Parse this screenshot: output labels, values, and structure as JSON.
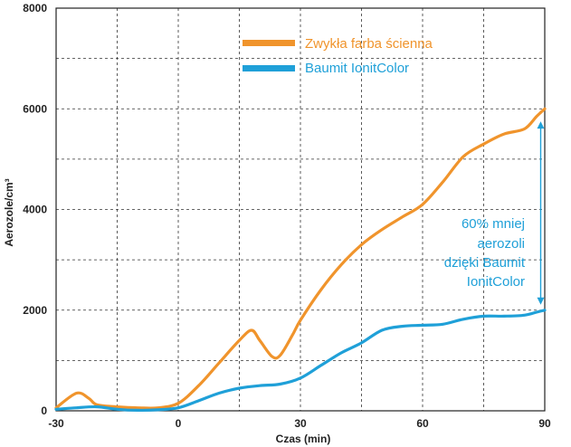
{
  "chart_data": {
    "type": "line",
    "xlabel": "Czas (min)",
    "ylabel": "Aerozole/cm³",
    "xlim": [
      -30,
      90
    ],
    "ylim": [
      0,
      8000
    ],
    "xticks": [
      -30,
      0,
      30,
      60,
      90
    ],
    "xtick_labels": [
      "-30",
      "0",
      "30",
      "60",
      "90"
    ],
    "yticks": [
      0,
      2000,
      4000,
      6000,
      8000
    ],
    "ytick_labels": [
      "0",
      "2000",
      "4000",
      "6000",
      "8000"
    ],
    "grid": true,
    "legend_position": "top-center",
    "series": [
      {
        "name": "Zwykła farba ścienna",
        "color": "#F0942C",
        "x": [
          -30,
          -25,
          -22,
          -20,
          -15,
          -10,
          -5,
          0,
          5,
          10,
          15,
          18,
          20,
          23,
          25,
          28,
          30,
          35,
          40,
          45,
          50,
          55,
          60,
          65,
          70,
          75,
          80,
          85,
          88,
          90
        ],
        "y": [
          60,
          350,
          250,
          120,
          80,
          60,
          60,
          150,
          500,
          950,
          1400,
          1600,
          1400,
          1080,
          1100,
          1500,
          1800,
          2400,
          2900,
          3300,
          3600,
          3850,
          4100,
          4550,
          5050,
          5300,
          5500,
          5600,
          5850,
          6000
        ]
      },
      {
        "name": "Baumit IonitColor",
        "color": "#1FA0D8",
        "x": [
          -30,
          -25,
          -20,
          -15,
          -10,
          -5,
          0,
          5,
          10,
          15,
          20,
          25,
          30,
          35,
          40,
          45,
          50,
          55,
          60,
          65,
          70,
          75,
          80,
          85,
          88,
          90
        ],
        "y": [
          30,
          60,
          80,
          30,
          10,
          20,
          60,
          200,
          350,
          450,
          500,
          530,
          650,
          900,
          1150,
          1350,
          1600,
          1680,
          1700,
          1720,
          1820,
          1880,
          1880,
          1900,
          1960,
          2000
        ]
      }
    ],
    "annotation": {
      "lines": [
        "60% mniej",
        "aerozoli",
        "dzięki Baumit",
        "IonitColor"
      ],
      "color": "#1FA0D8",
      "arrow_x": 89,
      "arrow_from_y": 2000,
      "arrow_to_y": 5750
    }
  }
}
